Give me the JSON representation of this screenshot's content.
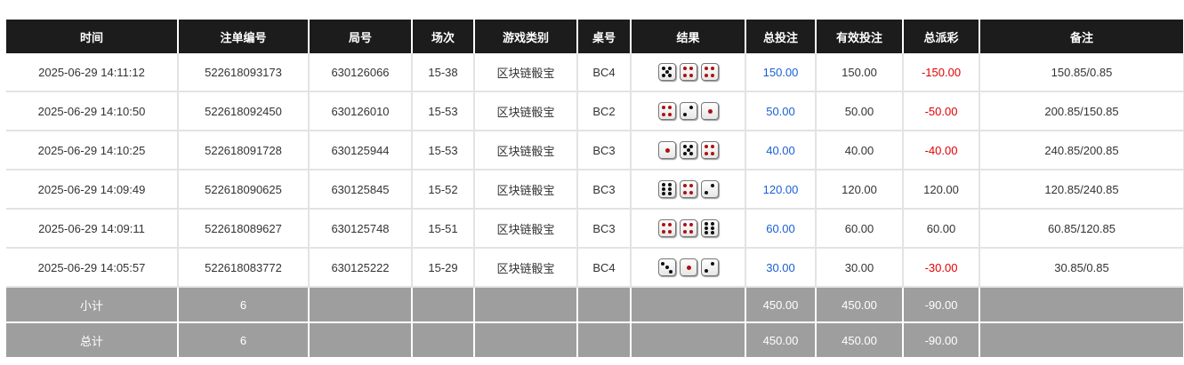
{
  "headers": [
    "时间",
    "注单编号",
    "局号",
    "场次",
    "游戏类别",
    "桌号",
    "结果",
    "总投注",
    "有效投注",
    "总派彩",
    "备注"
  ],
  "rows": [
    {
      "time": "2025-06-29 14:11:12",
      "bet_id": "522618093173",
      "round": "630126066",
      "session": "15-38",
      "game": "区块链骰宝",
      "table": "BC4",
      "dice": [
        5,
        4,
        4
      ],
      "total": "150.00",
      "valid": "150.00",
      "payout": "-150.00",
      "note": "150.85/0.85"
    },
    {
      "time": "2025-06-29 14:10:50",
      "bet_id": "522618092450",
      "round": "630126010",
      "session": "15-53",
      "game": "区块链骰宝",
      "table": "BC2",
      "dice": [
        4,
        2,
        1
      ],
      "total": "50.00",
      "valid": "50.00",
      "payout": "-50.00",
      "note": "200.85/150.85"
    },
    {
      "time": "2025-06-29 14:10:25",
      "bet_id": "522618091728",
      "round": "630125944",
      "session": "15-53",
      "game": "区块链骰宝",
      "table": "BC3",
      "dice": [
        1,
        5,
        4
      ],
      "total": "40.00",
      "valid": "40.00",
      "payout": "-40.00",
      "note": "240.85/200.85"
    },
    {
      "time": "2025-06-29 14:09:49",
      "bet_id": "522618090625",
      "round": "630125845",
      "session": "15-52",
      "game": "区块链骰宝",
      "table": "BC3",
      "dice": [
        6,
        4,
        2
      ],
      "total": "120.00",
      "valid": "120.00",
      "payout": "120.00",
      "note": "120.85/240.85"
    },
    {
      "time": "2025-06-29 14:09:11",
      "bet_id": "522618089627",
      "round": "630125748",
      "session": "15-51",
      "game": "区块链骰宝",
      "table": "BC3",
      "dice": [
        4,
        4,
        6
      ],
      "total": "60.00",
      "valid": "60.00",
      "payout": "60.00",
      "note": "60.85/120.85"
    },
    {
      "time": "2025-06-29 14:05:57",
      "bet_id": "522618083772",
      "round": "630125222",
      "session": "15-29",
      "game": "区块链骰宝",
      "table": "BC4",
      "dice": [
        3,
        1,
        2
      ],
      "total": "30.00",
      "valid": "30.00",
      "payout": "-30.00",
      "note": "30.85/0.85"
    }
  ],
  "summary": [
    {
      "label": "小计",
      "count": "6",
      "total": "450.00",
      "valid": "450.00",
      "payout": "-90.00"
    },
    {
      "label": "总计",
      "count": "6",
      "total": "450.00",
      "valid": "450.00",
      "payout": "-90.00"
    }
  ],
  "colors": {
    "header_bg": "#1c1c1c",
    "bet_blue": "#1a5fd6",
    "loss_red": "#e00000",
    "summary_bg": "#9e9e9e"
  }
}
